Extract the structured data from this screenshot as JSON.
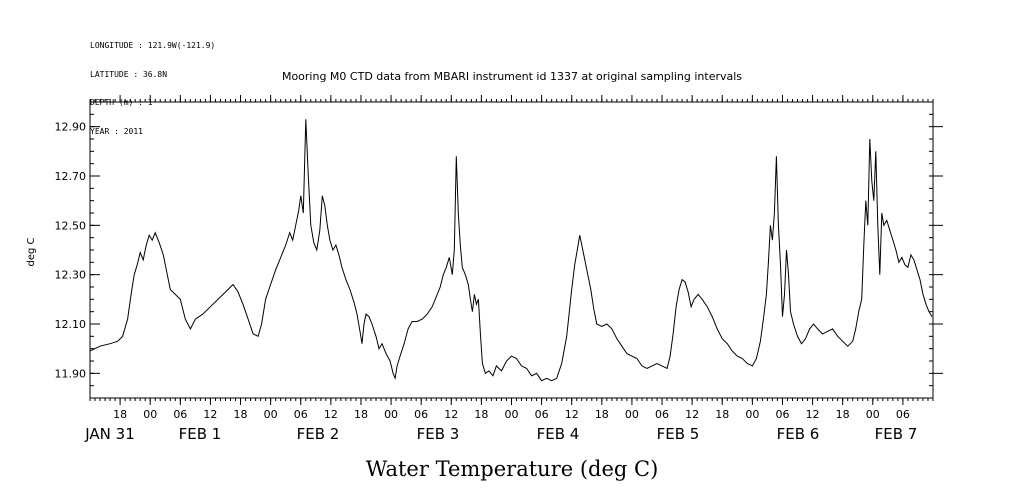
{
  "meta": {
    "longitude": "LONGITUDE : 121.9W(-121.9)",
    "latitude": "LATITUDE : 36.8N",
    "depth": "DEPTH (m) : 1",
    "year": "YEAR : 2011"
  },
  "chart_data": {
    "type": "line",
    "title": "Mooring M0 CTD data from MBARI instrument id 1337 at original sampling intervals",
    "xlabel": "Water Temperature (deg C)",
    "ylabel": "deg C",
    "ylim": [
      11.8,
      13.0
    ],
    "yticks": [
      "11.90",
      "12.10",
      "12.30",
      "12.50",
      "12.70",
      "12.90"
    ],
    "xlim_hours": [
      -12,
      156
    ],
    "x_unit_note": "hours from 2011-01-31 00:00",
    "hour_ticks": [
      "18",
      "00",
      "06",
      "12",
      "18",
      "00",
      "06",
      "12",
      "18",
      "00",
      "06",
      "12",
      "18",
      "00",
      "06",
      "12",
      "18",
      "00",
      "06",
      "12",
      "18",
      "00",
      "06",
      "12",
      "18",
      "00",
      "06",
      "12"
    ],
    "day_labels": [
      "JAN 31",
      "FEB  1",
      "FEB  2",
      "FEB  3",
      "FEB  4",
      "FEB  5",
      "FEB  6",
      "FEB  7"
    ],
    "series": [
      {
        "color": "#000000",
        "points": [
          [
            -12.0,
            11.99
          ],
          [
            -10.0,
            12.01
          ],
          [
            -8.0,
            12.02
          ],
          [
            -6.5,
            12.03
          ],
          [
            -5.5,
            12.05
          ],
          [
            -4.5,
            12.12
          ],
          [
            -3.8,
            12.22
          ],
          [
            -3.2,
            12.3
          ],
          [
            -2.6,
            12.34
          ],
          [
            -2.0,
            12.39
          ],
          [
            -1.4,
            12.36
          ],
          [
            -0.8,
            12.42
          ],
          [
            -0.2,
            12.46
          ],
          [
            0.4,
            12.44
          ],
          [
            1.0,
            12.47
          ],
          [
            1.8,
            12.43
          ],
          [
            2.6,
            12.38
          ],
          [
            3.4,
            12.3
          ],
          [
            4.0,
            12.24
          ],
          [
            5.0,
            12.22
          ],
          [
            6.0,
            12.2
          ],
          [
            7.0,
            12.12
          ],
          [
            8.0,
            12.08
          ],
          [
            9.0,
            12.12
          ],
          [
            10.5,
            12.14
          ],
          [
            12.0,
            12.17
          ],
          [
            14.0,
            12.21
          ],
          [
            15.5,
            12.24
          ],
          [
            16.5,
            12.26
          ],
          [
            17.5,
            12.23
          ],
          [
            18.5,
            12.18
          ],
          [
            19.5,
            12.12
          ],
          [
            20.5,
            12.06
          ],
          [
            21.5,
            12.05
          ],
          [
            22.2,
            12.1
          ],
          [
            23.0,
            12.2
          ],
          [
            24.0,
            12.26
          ],
          [
            25.0,
            12.32
          ],
          [
            26.0,
            12.37
          ],
          [
            27.0,
            12.42
          ],
          [
            27.8,
            12.47
          ],
          [
            28.4,
            12.44
          ],
          [
            29.0,
            12.5
          ],
          [
            29.6,
            12.56
          ],
          [
            30.0,
            12.62
          ],
          [
            30.5,
            12.55
          ],
          [
            31.0,
            12.93
          ],
          [
            31.5,
            12.7
          ],
          [
            32.0,
            12.5
          ],
          [
            32.6,
            12.43
          ],
          [
            33.2,
            12.4
          ],
          [
            33.8,
            12.48
          ],
          [
            34.3,
            12.62
          ],
          [
            34.8,
            12.58
          ],
          [
            35.3,
            12.5
          ],
          [
            35.8,
            12.44
          ],
          [
            36.4,
            12.4
          ],
          [
            37.0,
            12.42
          ],
          [
            37.6,
            12.38
          ],
          [
            38.2,
            12.33
          ],
          [
            39.0,
            12.28
          ],
          [
            39.8,
            12.24
          ],
          [
            40.6,
            12.19
          ],
          [
            41.2,
            12.14
          ],
          [
            41.8,
            12.07
          ],
          [
            42.2,
            12.02
          ],
          [
            42.6,
            12.1
          ],
          [
            43.0,
            12.14
          ],
          [
            43.6,
            12.13
          ],
          [
            44.2,
            12.1
          ],
          [
            45.0,
            12.05
          ],
          [
            45.6,
            12.0
          ],
          [
            46.2,
            12.02
          ],
          [
            47.0,
            11.98
          ],
          [
            47.8,
            11.95
          ],
          [
            48.4,
            11.9
          ],
          [
            48.8,
            11.88
          ],
          [
            49.2,
            11.93
          ],
          [
            49.8,
            11.97
          ],
          [
            50.6,
            12.02
          ],
          [
            51.4,
            12.08
          ],
          [
            52.2,
            12.11
          ],
          [
            53.2,
            12.11
          ],
          [
            54.2,
            12.12
          ],
          [
            55.2,
            12.14
          ],
          [
            56.2,
            12.17
          ],
          [
            57.0,
            12.21
          ],
          [
            57.8,
            12.25
          ],
          [
            58.4,
            12.3
          ],
          [
            59.0,
            12.33
          ],
          [
            59.6,
            12.37
          ],
          [
            60.2,
            12.3
          ],
          [
            60.6,
            12.4
          ],
          [
            61.0,
            12.78
          ],
          [
            61.4,
            12.55
          ],
          [
            61.8,
            12.42
          ],
          [
            62.2,
            12.33
          ],
          [
            62.8,
            12.3
          ],
          [
            63.4,
            12.26
          ],
          [
            63.8,
            12.2
          ],
          [
            64.2,
            12.15
          ],
          [
            64.6,
            12.22
          ],
          [
            65.0,
            12.18
          ],
          [
            65.4,
            12.2
          ],
          [
            65.8,
            12.06
          ],
          [
            66.2,
            11.94
          ],
          [
            66.8,
            11.9
          ],
          [
            67.5,
            11.91
          ],
          [
            68.3,
            11.89
          ],
          [
            69.0,
            11.93
          ],
          [
            70.0,
            11.91
          ],
          [
            71.0,
            11.95
          ],
          [
            72.0,
            11.97
          ],
          [
            73.0,
            11.96
          ],
          [
            74.0,
            11.93
          ],
          [
            75.0,
            11.92
          ],
          [
            76.0,
            11.89
          ],
          [
            77.0,
            11.9
          ],
          [
            78.0,
            11.87
          ],
          [
            79.0,
            11.88
          ],
          [
            80.0,
            11.87
          ],
          [
            81.0,
            11.88
          ],
          [
            82.0,
            11.94
          ],
          [
            83.0,
            12.05
          ],
          [
            84.0,
            12.24
          ],
          [
            84.6,
            12.34
          ],
          [
            85.2,
            12.41
          ],
          [
            85.6,
            12.46
          ],
          [
            86.0,
            12.42
          ],
          [
            86.6,
            12.36
          ],
          [
            87.2,
            12.3
          ],
          [
            87.8,
            12.24
          ],
          [
            88.4,
            12.16
          ],
          [
            89.0,
            12.1
          ],
          [
            90.0,
            12.09
          ],
          [
            91.0,
            12.1
          ],
          [
            92.0,
            12.08
          ],
          [
            93.0,
            12.04
          ],
          [
            94.0,
            12.01
          ],
          [
            95.0,
            11.98
          ],
          [
            96.0,
            11.97
          ],
          [
            97.0,
            11.96
          ],
          [
            98.0,
            11.93
          ],
          [
            99.0,
            11.92
          ],
          [
            100.0,
            11.93
          ],
          [
            101.0,
            11.94
          ],
          [
            102.0,
            11.93
          ],
          [
            103.0,
            11.92
          ],
          [
            103.6,
            11.97
          ],
          [
            104.2,
            12.06
          ],
          [
            104.8,
            12.17
          ],
          [
            105.4,
            12.24
          ],
          [
            106.0,
            12.28
          ],
          [
            106.6,
            12.27
          ],
          [
            107.2,
            12.23
          ],
          [
            107.8,
            12.17
          ],
          [
            108.4,
            12.2
          ],
          [
            109.2,
            12.22
          ],
          [
            110.0,
            12.2
          ],
          [
            111.0,
            12.17
          ],
          [
            112.0,
            12.13
          ],
          [
            113.0,
            12.08
          ],
          [
            114.0,
            12.04
          ],
          [
            115.0,
            12.02
          ],
          [
            116.0,
            11.99
          ],
          [
            117.0,
            11.97
          ],
          [
            118.0,
            11.96
          ],
          [
            119.0,
            11.94
          ],
          [
            120.0,
            11.93
          ],
          [
            120.8,
            11.96
          ],
          [
            121.6,
            12.03
          ],
          [
            122.2,
            12.12
          ],
          [
            122.8,
            12.22
          ],
          [
            123.2,
            12.35
          ],
          [
            123.6,
            12.5
          ],
          [
            124.0,
            12.44
          ],
          [
            124.4,
            12.55
          ],
          [
            124.8,
            12.78
          ],
          [
            125.2,
            12.5
          ],
          [
            125.6,
            12.34
          ],
          [
            126.0,
            12.13
          ],
          [
            126.4,
            12.22
          ],
          [
            126.8,
            12.4
          ],
          [
            127.2,
            12.3
          ],
          [
            127.6,
            12.15
          ],
          [
            128.2,
            12.1
          ],
          [
            129.0,
            12.05
          ],
          [
            129.8,
            12.02
          ],
          [
            130.6,
            12.04
          ],
          [
            131.4,
            12.08
          ],
          [
            132.2,
            12.1
          ],
          [
            133.0,
            12.08
          ],
          [
            134.0,
            12.06
          ],
          [
            135.0,
            12.07
          ],
          [
            136.0,
            12.08
          ],
          [
            137.0,
            12.05
          ],
          [
            138.0,
            12.03
          ],
          [
            139.0,
            12.01
          ],
          [
            140.0,
            12.03
          ],
          [
            140.6,
            12.08
          ],
          [
            141.2,
            12.15
          ],
          [
            141.8,
            12.2
          ],
          [
            142.2,
            12.42
          ],
          [
            142.6,
            12.6
          ],
          [
            143.0,
            12.5
          ],
          [
            143.4,
            12.85
          ],
          [
            143.8,
            12.68
          ],
          [
            144.2,
            12.6
          ],
          [
            144.6,
            12.8
          ],
          [
            145.0,
            12.5
          ],
          [
            145.4,
            12.3
          ],
          [
            145.8,
            12.55
          ],
          [
            146.2,
            12.5
          ],
          [
            146.8,
            12.52
          ],
          [
            147.4,
            12.48
          ],
          [
            148.0,
            12.44
          ],
          [
            148.6,
            12.4
          ],
          [
            149.2,
            12.35
          ],
          [
            149.8,
            12.37
          ],
          [
            150.4,
            12.34
          ],
          [
            151.0,
            12.33
          ],
          [
            151.6,
            12.38
          ],
          [
            152.2,
            12.36
          ],
          [
            152.8,
            12.32
          ],
          [
            153.4,
            12.28
          ],
          [
            154.0,
            12.22
          ],
          [
            154.6,
            12.18
          ],
          [
            155.2,
            12.15
          ],
          [
            155.8,
            12.13
          ]
        ]
      }
    ]
  }
}
